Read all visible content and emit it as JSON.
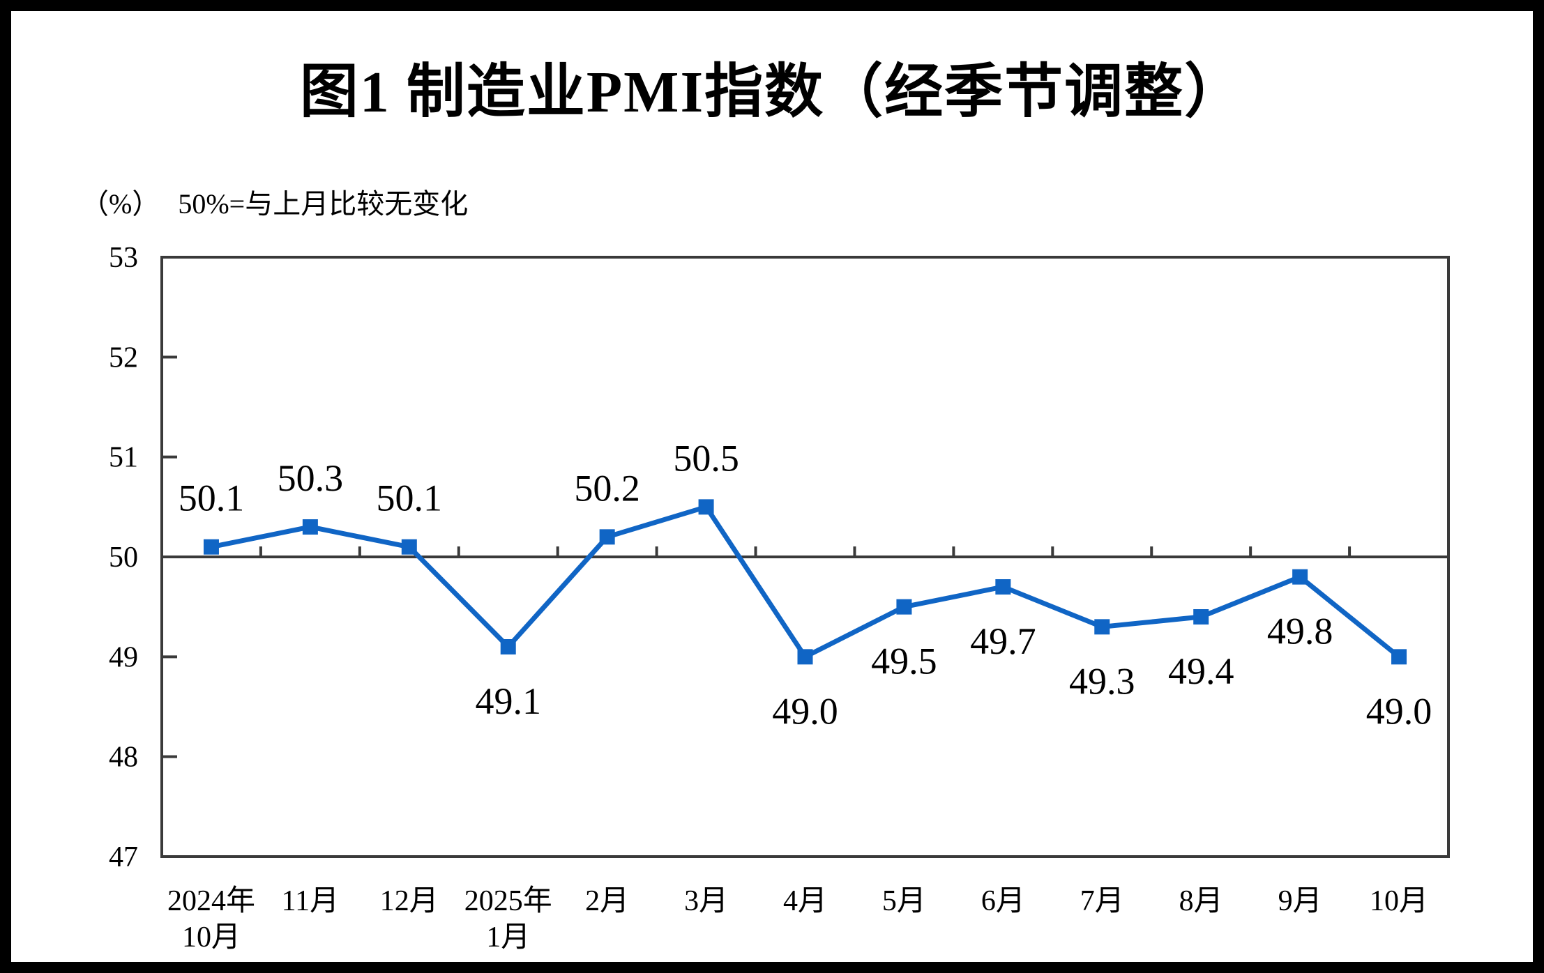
{
  "chart_data": {
    "type": "line",
    "title": "图1 制造业PMI指数（经季节调整）",
    "y_axis_unit": "（%）",
    "note": "50%=与上月比较无变化",
    "categories": [
      "2024年\n10月",
      "11月",
      "12月",
      "2025年\n1月",
      "2月",
      "3月",
      "4月",
      "5月",
      "6月",
      "7月",
      "8月",
      "9月",
      "10月"
    ],
    "series": [
      {
        "values": [
          50.1,
          50.3,
          50.1,
          49.1,
          50.2,
          50.5,
          49.0,
          49.5,
          49.7,
          49.3,
          49.4,
          49.8,
          49.0
        ],
        "data_labels": [
          "50.1",
          "50.3",
          "50.1",
          "49.1",
          "50.2",
          "50.5",
          "49.0",
          "49.5",
          "49.7",
          "49.3",
          "49.4",
          "49.8",
          "49.0"
        ],
        "label_positions": [
          "above",
          "above",
          "above",
          "below",
          "above",
          "above",
          "below",
          "below",
          "below",
          "below",
          "below",
          "below",
          "below"
        ]
      }
    ],
    "ylim": [
      47,
      53
    ],
    "y_ticks": [
      47,
      48,
      49,
      50,
      51,
      52,
      53
    ],
    "reference_line": 50,
    "grid": "off",
    "legend": "none",
    "marker": "square",
    "line_color": "#1065C5",
    "axis_color": "#3A3A3A",
    "text_color": "#000000"
  }
}
